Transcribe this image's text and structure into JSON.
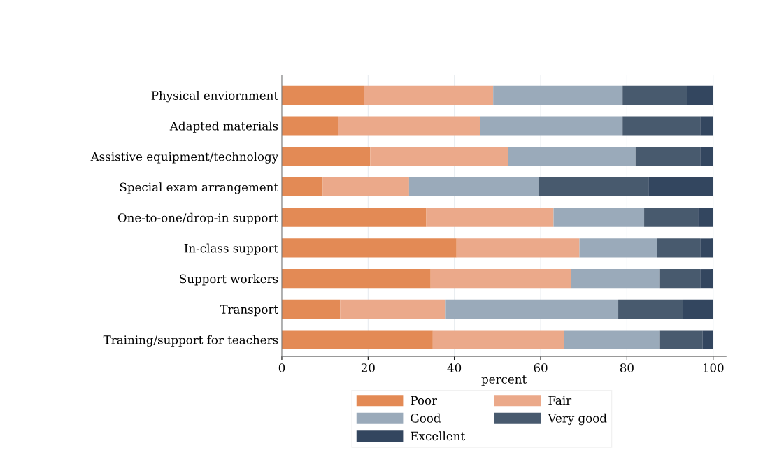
{
  "chart_data": {
    "type": "bar",
    "orientation": "horizontal",
    "stacked": true,
    "categories": [
      "Physical enviornment",
      "Adapted materials",
      "Assistive equipment/technology",
      "Special exam arrangement",
      "One-to-one/drop-in support",
      "In-class support",
      "Support workers",
      "Transport",
      "Training/support for teachers"
    ],
    "series": [
      {
        "name": "Poor",
        "color": "#e38a55",
        "values": [
          19,
          13,
          20.5,
          9.5,
          33.5,
          40.5,
          34.5,
          13.5,
          35
        ]
      },
      {
        "name": "Fair",
        "color": "#eba98a",
        "values": [
          30,
          33,
          32,
          20,
          29.5,
          28.5,
          32.5,
          24.5,
          30.5
        ]
      },
      {
        "name": "Good",
        "color": "#9aaaba",
        "values": [
          30,
          33,
          29.5,
          30,
          21,
          18,
          20.5,
          40,
          22
        ]
      },
      {
        "name": "Very good",
        "color": "#485a6e",
        "values": [
          15,
          18,
          15,
          25.5,
          12.5,
          10,
          9.5,
          15,
          10
        ]
      },
      {
        "name": "Excellent",
        "color": "#33465f",
        "values": [
          6,
          3,
          3,
          15,
          3.5,
          3,
          3,
          7,
          2.5
        ]
      }
    ],
    "xlabel": "percent",
    "xlim": [
      0,
      103
    ],
    "xticks": [
      0,
      20,
      40,
      60,
      80,
      100
    ],
    "grid": "x",
    "legend": "bottom"
  }
}
